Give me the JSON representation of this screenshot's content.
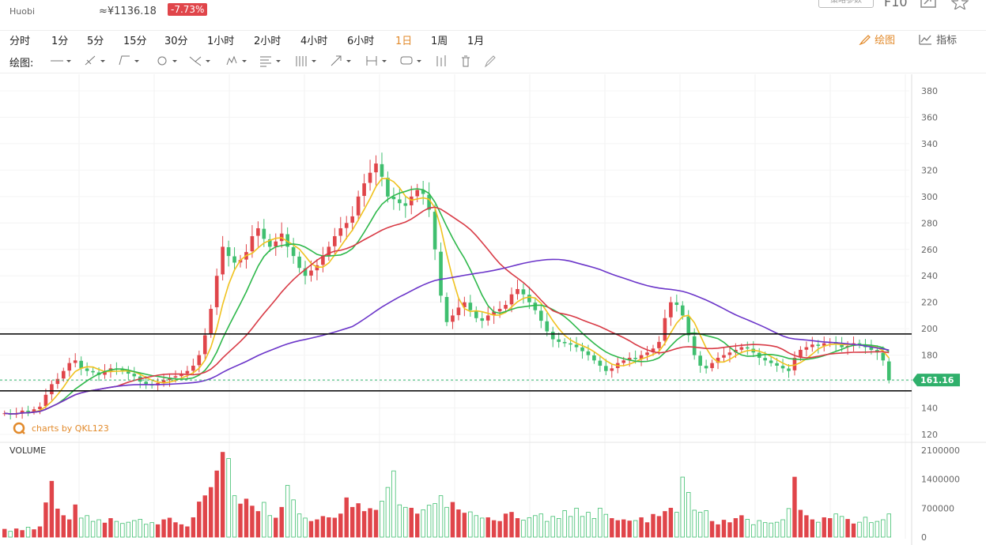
{
  "header": {
    "exchange": "Huobi",
    "approx_price": "≈¥1136.18",
    "change": "-7.73%",
    "params_button": "策略参数",
    "f10_label": "F10"
  },
  "timeframes": [
    "分时",
    "1分",
    "5分",
    "15分",
    "30分",
    "1小时",
    "2小时",
    "4小时",
    "6小时",
    "1日",
    "1周",
    "1月"
  ],
  "active_timeframe": "1日",
  "toolbar_right": {
    "draw_label": "绘图",
    "indicator_label": "指标"
  },
  "draw_bar": {
    "label": "绘图:"
  },
  "draw_tools": [
    "line-tool-icon",
    "ray-tool-icon",
    "channel-tool-icon",
    "circle-tool-icon",
    "fork-tool-icon",
    "pattern-tool-icon",
    "fib-tool-icon",
    "grid-tool-icon",
    "arrow-tool-icon",
    "measure-tool-icon",
    "comment-tool-icon",
    "bars-tool-icon",
    "trash-icon",
    "pen-icon"
  ],
  "colors": {
    "up": "#e0454a",
    "down": "#3fbf6f",
    "ma_yellow": "#f0c21f",
    "ma_green": "#2eb84b",
    "ma_red": "#d83a45",
    "ma_purple": "#6b35c9",
    "accent": "#e28a2b",
    "last_price_bg": "#2fb06b"
  },
  "watermark": "charts by QKL123",
  "chart_data": {
    "type": "candlestick",
    "title": "",
    "price_axis": {
      "ticks": [
        120,
        140,
        160,
        180,
        200,
        220,
        240,
        260,
        280,
        300,
        320,
        340,
        360,
        380
      ],
      "range": [
        115,
        385
      ]
    },
    "last_price": "161.16",
    "horizontal_lines": [
      196,
      153
    ],
    "volume_label": "VOLUME",
    "volume_axis": {
      "ticks": [
        0,
        700000,
        1400000,
        2100000
      ],
      "tick_labels": [
        "0",
        "700000",
        "1400000",
        "2100000"
      ],
      "range": [
        0,
        2200000
      ]
    },
    "closes": [
      136,
      135,
      136,
      138,
      137,
      139,
      141,
      150,
      158,
      162,
      168,
      174,
      176,
      170,
      168,
      167,
      165,
      168,
      170,
      169,
      168,
      166,
      164,
      160,
      158,
      157,
      159,
      161,
      163,
      164,
      166,
      168,
      172,
      180,
      195,
      215,
      240,
      262,
      255,
      250,
      252,
      258,
      270,
      276,
      268,
      262,
      266,
      272,
      262,
      255,
      246,
      240,
      244,
      248,
      255,
      262,
      270,
      276,
      280,
      285,
      300,
      310,
      318,
      325,
      315,
      300,
      298,
      295,
      293,
      300,
      305,
      302,
      290,
      260,
      225,
      205,
      210,
      216,
      220,
      214,
      208,
      206,
      210,
      213,
      215,
      218,
      226,
      230,
      226,
      220,
      214,
      206,
      198,
      192,
      190,
      189,
      188,
      186,
      183,
      180,
      176,
      172,
      168,
      170,
      174,
      176,
      178,
      177,
      180,
      182,
      185,
      190,
      208,
      220,
      218,
      210,
      195,
      180,
      172,
      170,
      174,
      178,
      180,
      182,
      184,
      186,
      185,
      182,
      178,
      176,
      174,
      172,
      170,
      168,
      178,
      184,
      186,
      188,
      187,
      189,
      190,
      188,
      186,
      187,
      189,
      188,
      186,
      184,
      182,
      176,
      161
    ],
    "volumes": [
      190000,
      140000,
      200000,
      160000,
      240000,
      180000,
      250000,
      830000,
      1350000,
      680000,
      520000,
      420000,
      780000,
      460000,
      520000,
      380000,
      420000,
      340000,
      450000,
      380000,
      330000,
      360000,
      400000,
      430000,
      310000,
      350000,
      300000,
      420000,
      460000,
      350000,
      300000,
      250000,
      470000,
      850000,
      1000000,
      1200000,
      1600000,
      2050000,
      1900000,
      1000000,
      800000,
      920000,
      750000,
      620000,
      840000,
      520000,
      460000,
      720000,
      1250000,
      900000,
      560000,
      460000,
      380000,
      420000,
      500000,
      470000,
      460000,
      560000,
      950000,
      720000,
      810000,
      620000,
      690000,
      650000,
      870000,
      1200000,
      1600000,
      780000,
      720000,
      700000,
      560000,
      660000,
      770000,
      810000,
      1000000,
      720000,
      840000,
      660000,
      580000,
      610000,
      520000,
      460000,
      470000,
      400000,
      380000,
      560000,
      600000,
      450000,
      410000,
      470000,
      520000,
      560000,
      380000,
      500000,
      450000,
      640000,
      500000,
      700000,
      500000,
      600000,
      450000,
      700000,
      550000,
      450000,
      400000,
      420000,
      390000,
      400000,
      470000,
      350000,
      550000,
      500000,
      620000,
      700000,
      600000,
      1450000,
      1080000,
      650000,
      600000,
      640000,
      380000,
      300000,
      410000,
      350000,
      450000,
      520000,
      430000,
      300000,
      400000,
      350000,
      340000,
      360000,
      420000,
      690000,
      1450000,
      650000,
      520000,
      420000,
      360000,
      470000,
      450000,
      560000,
      500000,
      430000,
      320000,
      360000,
      480000,
      350000,
      380000,
      420000,
      560000
    ]
  }
}
